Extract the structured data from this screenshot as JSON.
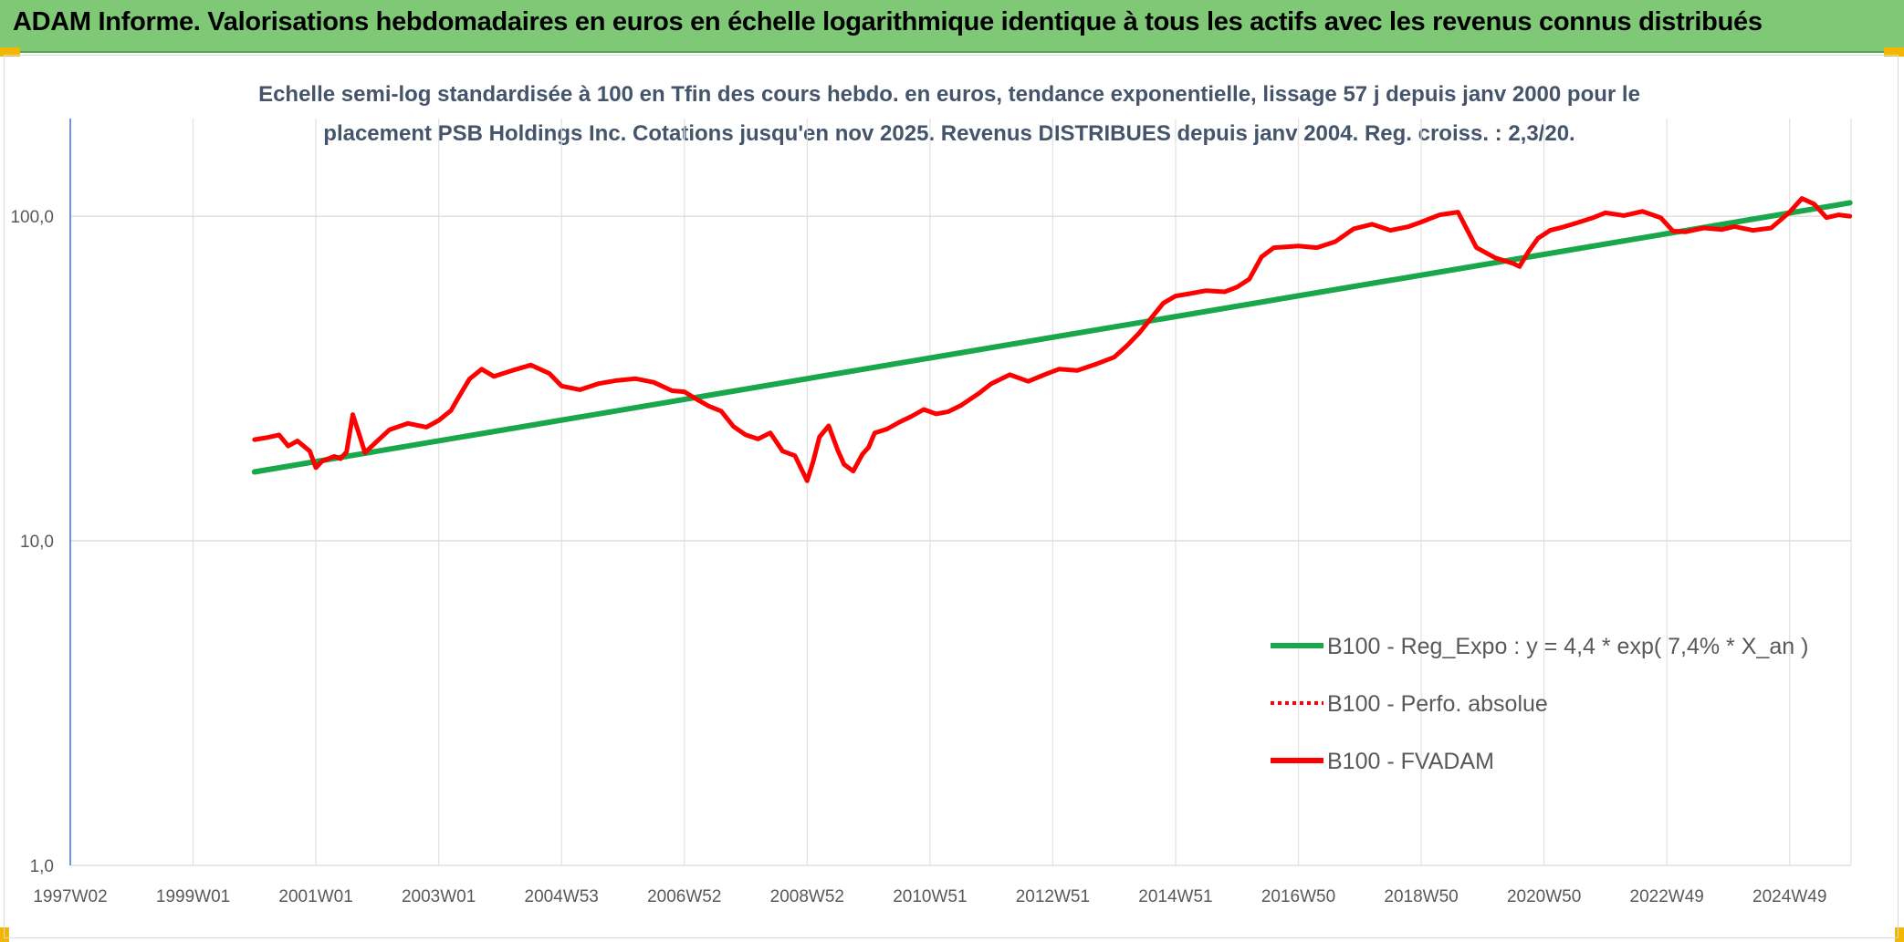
{
  "header": {
    "title": "ADAM Informe. Valorisations hebdomadaires en euros en échelle logarithmique identique à tous les actifs avec les revenus connus distribués"
  },
  "chart_data": {
    "type": "line",
    "title_line1": "Echelle semi-log standardisée à 100 en Tfin des cours hebdo. en euros, tendance exponentielle, lissage 57 j depuis janv 2000 pour le",
    "title_line2": "placement PSB Holdings Inc. Cotations jusqu'en nov 2025. Revenus DISTRIBUES depuis janv 2004. Reg. croiss. : 2,3/20.",
    "y_scale": "log",
    "ylim": [
      1,
      200
    ],
    "xlim": [
      1997.0,
      2026.0
    ],
    "y_ticks": [
      {
        "value": 1,
        "label": "1,0"
      },
      {
        "value": 10,
        "label": "10,0"
      },
      {
        "value": 100,
        "label": "100,0"
      }
    ],
    "x_ticks": [
      {
        "value": 1997.0,
        "label": "1997W02"
      },
      {
        "value": 1999.0,
        "label": "1999W01"
      },
      {
        "value": 2001.0,
        "label": "2001W01"
      },
      {
        "value": 2003.0,
        "label": "2003W01"
      },
      {
        "value": 2005.0,
        "label": "2004W53"
      },
      {
        "value": 2007.0,
        "label": "2006W52"
      },
      {
        "value": 2009.0,
        "label": "2008W52"
      },
      {
        "value": 2011.0,
        "label": "2010W51"
      },
      {
        "value": 2013.0,
        "label": "2012W51"
      },
      {
        "value": 2015.0,
        "label": "2014W51"
      },
      {
        "value": 2017.0,
        "label": "2016W50"
      },
      {
        "value": 2019.0,
        "label": "2018W50"
      },
      {
        "value": 2021.0,
        "label": "2020W50"
      },
      {
        "value": 2023.0,
        "label": "2022W49"
      },
      {
        "value": 2025.0,
        "label": "2024W49"
      }
    ],
    "series": [
      {
        "name": "B100 - Reg_Expo : y = 4,4 * exp( 7,4% *  X_an )",
        "color": "#1aa64a",
        "style": "solid",
        "x": [
          2000.0,
          2025.98
        ],
        "y": [
          16.3,
          110
        ]
      },
      {
        "name": "B100 - Perfo. absolue",
        "color": "#ff0000",
        "style": "dotted",
        "x": [],
        "y": []
      },
      {
        "name": "B100 - FVADAM",
        "color": "#ff0000",
        "style": "solid",
        "x": [
          2000.0,
          2000.2,
          2000.4,
          2000.55,
          2000.7,
          2000.9,
          2001.0,
          2001.1,
          2001.3,
          2001.4,
          2001.5,
          2001.6,
          2001.8,
          2002.0,
          2002.2,
          2002.5,
          2002.8,
          2003.0,
          2003.2,
          2003.3,
          2003.5,
          2003.7,
          2003.9,
          2004.2,
          2004.5,
          2004.8,
          2005.0,
          2005.3,
          2005.6,
          2005.9,
          2006.2,
          2006.5,
          2006.8,
          2007.0,
          2007.2,
          2007.4,
          2007.6,
          2007.8,
          2008.0,
          2008.2,
          2008.4,
          2008.6,
          2008.8,
          2009.0,
          2009.1,
          2009.2,
          2009.35,
          2009.5,
          2009.6,
          2009.75,
          2009.9,
          2010.0,
          2010.1,
          2010.3,
          2010.5,
          2010.7,
          2010.9,
          2011.1,
          2011.3,
          2011.5,
          2011.8,
          2012.0,
          2012.3,
          2012.6,
          2012.9,
          2013.1,
          2013.4,
          2013.7,
          2014.0,
          2014.2,
          2014.4,
          2014.6,
          2014.8,
          2015.0,
          2015.2,
          2015.5,
          2015.8,
          2016.0,
          2016.2,
          2016.4,
          2016.6,
          2016.8,
          2017.0,
          2017.3,
          2017.6,
          2017.9,
          2018.2,
          2018.5,
          2018.8,
          2019.0,
          2019.3,
          2019.6,
          2019.9,
          2020.2,
          2020.5,
          2020.6,
          2020.75,
          2020.9,
          2021.1,
          2021.3,
          2021.5,
          2021.8,
          2022.0,
          2022.3,
          2022.6,
          2022.9,
          2023.1,
          2023.3,
          2023.6,
          2023.9,
          2024.1,
          2024.4,
          2024.7,
          2025.0,
          2025.2,
          2025.4,
          2025.6,
          2025.8,
          2025.98
        ],
        "y": [
          20.5,
          20.8,
          21.2,
          19.6,
          20.3,
          18.9,
          16.8,
          17.6,
          18.2,
          17.9,
          18.8,
          24.5,
          18.7,
          20.3,
          22.0,
          23.0,
          22.4,
          23.5,
          25.2,
          27.2,
          31.5,
          33.8,
          32.1,
          33.5,
          34.8,
          32.8,
          30.0,
          29.2,
          30.5,
          31.2,
          31.6,
          30.8,
          29.0,
          28.8,
          27.3,
          26.0,
          25.1,
          22.5,
          21.2,
          20.6,
          21.5,
          18.9,
          18.3,
          15.3,
          17.6,
          20.9,
          22.6,
          19.0,
          17.2,
          16.4,
          18.5,
          19.4,
          21.5,
          22.1,
          23.2,
          24.2,
          25.4,
          24.6,
          25.0,
          26.1,
          28.5,
          30.5,
          32.5,
          31.0,
          32.7,
          33.8,
          33.5,
          35.0,
          36.8,
          39.8,
          43.5,
          48.5,
          54.0,
          56.8,
          57.6,
          59.0,
          58.5,
          60.5,
          64.0,
          75.0,
          80.0,
          80.5,
          81.0,
          80.0,
          83.5,
          91.5,
          94.5,
          90.5,
          93.0,
          96.0,
          101.0,
          103.0,
          80.0,
          74.5,
          71.5,
          70.0,
          78.0,
          85.5,
          90.5,
          92.5,
          95.0,
          99.0,
          102.5,
          100.5,
          103.5,
          99.0,
          90.0,
          89.5,
          92.0,
          91.0,
          93.0,
          90.5,
          92.0,
          103.0,
          113.5,
          109.0,
          99.0,
          101.0,
          100.0
        ]
      }
    ]
  }
}
